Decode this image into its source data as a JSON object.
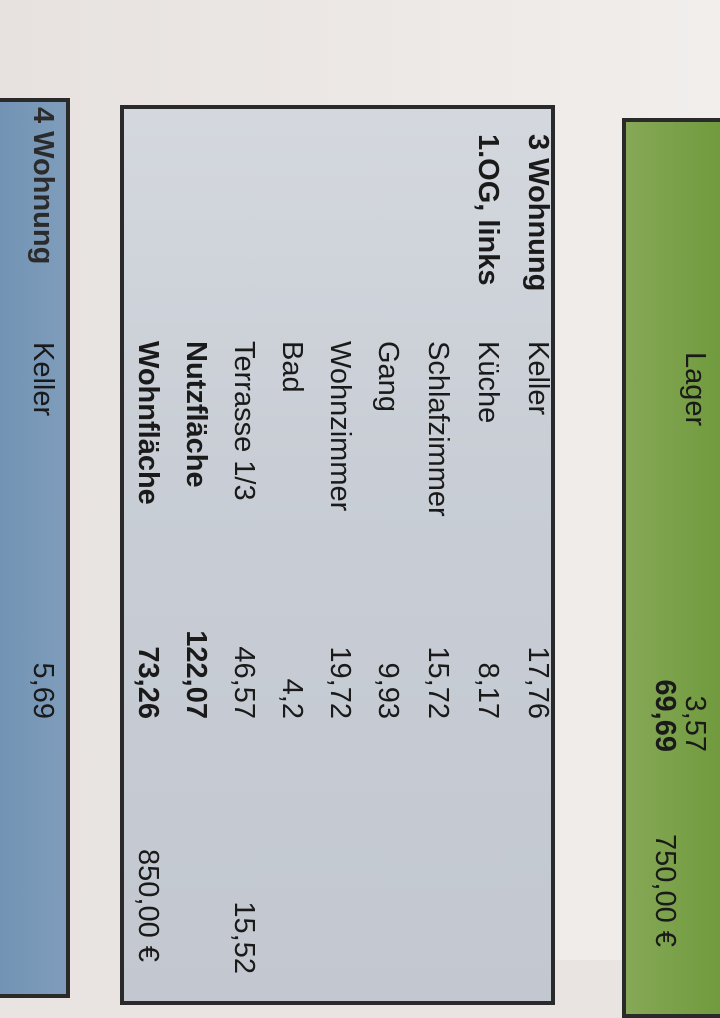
{
  "colors": {
    "green_box": "#7da04a",
    "gray_box": "#c8ccd2",
    "blue_box": "#7d9ab8",
    "border": "#2a2a2a"
  },
  "green_section": {
    "room": "Lager",
    "room_area": "3,57",
    "total_area": "69,69",
    "price": "750,00 €"
  },
  "unit3": {
    "title": "3 Wohnung",
    "location": "1.OG, links",
    "rooms": [
      {
        "label": "Keller",
        "area": "17,76"
      },
      {
        "label": "Küche",
        "area": "8,17"
      },
      {
        "label": "Schlafzimmer",
        "area": "15,72"
      },
      {
        "label": "Gang",
        "area": "9,93"
      },
      {
        "label": "Wohnzimmer",
        "area": "19,72"
      },
      {
        "label": "Bad",
        "area": "4,2"
      },
      {
        "label": "Terrasse 1/3",
        "area": "46,57",
        "extra": "15,52"
      }
    ],
    "nutzflaeche_label": "Nutzfläche",
    "nutzflaeche": "122,07",
    "wohnflaeche_label": "Wohnfläche",
    "wohnflaeche": "73,26",
    "price": "850,00 €"
  },
  "unit4": {
    "title": "4 Wohnung",
    "rooms": [
      {
        "label": "Keller",
        "area": "5,69"
      }
    ]
  }
}
